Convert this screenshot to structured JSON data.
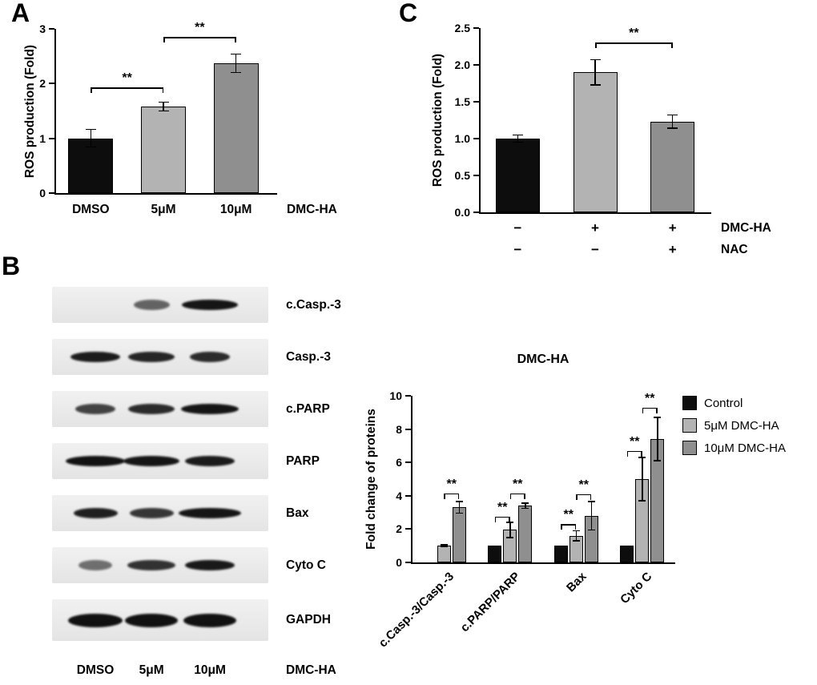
{
  "panels": {
    "a_label": "A",
    "b_label": "B",
    "c_label": "C"
  },
  "chart_data": [
    {
      "id": "chartA",
      "type": "bar",
      "title": "",
      "ylabel": "ROS production (Fold)",
      "ylim": [
        0,
        3
      ],
      "yticks": [
        "0",
        "1",
        "2",
        "3"
      ],
      "categories": [
        "DMSO",
        "5μM",
        "10μM"
      ],
      "values": [
        1.0,
        1.58,
        2.37
      ],
      "errors": [
        0.16,
        0.08,
        0.17
      ],
      "bar_colors": [
        "#0d0d0d",
        "#b3b3b3",
        "#8f8f8f"
      ],
      "axis_label_right": "DMC-HA",
      "brackets": [
        {
          "from": 0,
          "to": 1,
          "y": 1.93,
          "label": "**"
        },
        {
          "from": 1,
          "to": 2,
          "y": 2.85,
          "label": "**"
        }
      ]
    },
    {
      "id": "chartC",
      "type": "bar",
      "title": "",
      "ylabel": "ROS production (Fold)",
      "ylim": [
        0,
        2.5
      ],
      "yticks": [
        "0.0",
        "0.5",
        "1.0",
        "1.5",
        "2.0",
        "2.5"
      ],
      "values": [
        1.0,
        1.9,
        1.23
      ],
      "errors": [
        0.05,
        0.17,
        0.09
      ],
      "bar_colors": [
        "#0d0d0d",
        "#b3b3b3",
        "#8f8f8f"
      ],
      "sign_rows": [
        {
          "signs": [
            "−",
            "+",
            "+"
          ],
          "label": "DMC-HA"
        },
        {
          "signs": [
            "−",
            "−",
            "+"
          ],
          "label": "NAC"
        }
      ],
      "brackets": [
        {
          "from": 1,
          "to": 2,
          "y": 2.3,
          "label": "**"
        }
      ]
    },
    {
      "id": "chartB",
      "type": "grouped_bar",
      "title": "DMC-HA",
      "ylabel": "Fold change of proteins",
      "ylim": [
        0,
        10
      ],
      "yticks": [
        "0",
        "2",
        "4",
        "6",
        "8",
        "10"
      ],
      "categories": [
        "c.Casp.-3/Casp.-3",
        "c.PARP/PARP",
        "Bax",
        "Cyto C"
      ],
      "series": [
        {
          "name": "Control",
          "color": "#0d0d0d",
          "values": [
            0,
            1.0,
            1.0,
            1.0
          ],
          "errors": [
            0,
            0,
            0,
            0
          ]
        },
        {
          "name": "5μM DMC-HA",
          "color": "#b3b3b3",
          "values": [
            1.0,
            1.95,
            1.6,
            5.0
          ],
          "errors": [
            0.06,
            0.45,
            0.3,
            1.3
          ]
        },
        {
          "name": "10μM DMC-HA",
          "color": "#8f8f8f",
          "values": [
            3.3,
            3.4,
            2.8,
            7.4
          ],
          "errors": [
            0.35,
            0.15,
            0.85,
            1.3
          ]
        }
      ],
      "legend_position": "right",
      "brackets": [
        {
          "group": 0,
          "from": 1,
          "to": 2,
          "y": 4.15,
          "label": "**"
        },
        {
          "group": 1,
          "from": 0,
          "to": 1,
          "y": 2.75,
          "label": "**"
        },
        {
          "group": 1,
          "from": 1,
          "to": 2,
          "y": 4.15,
          "label": "**"
        },
        {
          "group": 2,
          "from": 0,
          "to": 1,
          "y": 2.3,
          "label": "**"
        },
        {
          "group": 2,
          "from": 1,
          "to": 2,
          "y": 4.1,
          "label": "**"
        },
        {
          "group": 3,
          "from": 0,
          "to": 1,
          "y": 6.7,
          "label": "**"
        },
        {
          "group": 3,
          "from": 1,
          "to": 2,
          "y": 9.3,
          "label": "**"
        }
      ]
    }
  ],
  "blots": {
    "rows": [
      {
        "label": "c.Casp.-3",
        "bands": [
          0,
          0.6,
          0.95
        ],
        "widths": [
          0,
          0.45,
          0.7
        ]
      },
      {
        "label": "Casp.-3",
        "bands": [
          0.92,
          0.88,
          0.85
        ],
        "widths": [
          0.62,
          0.58,
          0.5
        ]
      },
      {
        "label": "c.PARP",
        "bands": [
          0.75,
          0.85,
          0.95
        ],
        "widths": [
          0.5,
          0.58,
          0.72
        ]
      },
      {
        "label": "PARP",
        "bands": [
          0.96,
          0.95,
          0.92
        ],
        "widths": [
          0.74,
          0.7,
          0.62
        ]
      },
      {
        "label": "Bax",
        "bands": [
          0.9,
          0.8,
          0.95
        ],
        "widths": [
          0.55,
          0.55,
          0.78
        ]
      },
      {
        "label": "Cyto C",
        "bands": [
          0.55,
          0.82,
          0.93
        ],
        "widths": [
          0.42,
          0.6,
          0.62
        ]
      },
      {
        "label": "GAPDH",
        "bands": [
          0.97,
          0.97,
          0.97
        ],
        "widths": [
          0.68,
          0.66,
          0.66
        ]
      }
    ],
    "lane_labels": [
      "DMSO",
      "5μM",
      "10μM"
    ],
    "treatment_label": "DMC-HA"
  }
}
